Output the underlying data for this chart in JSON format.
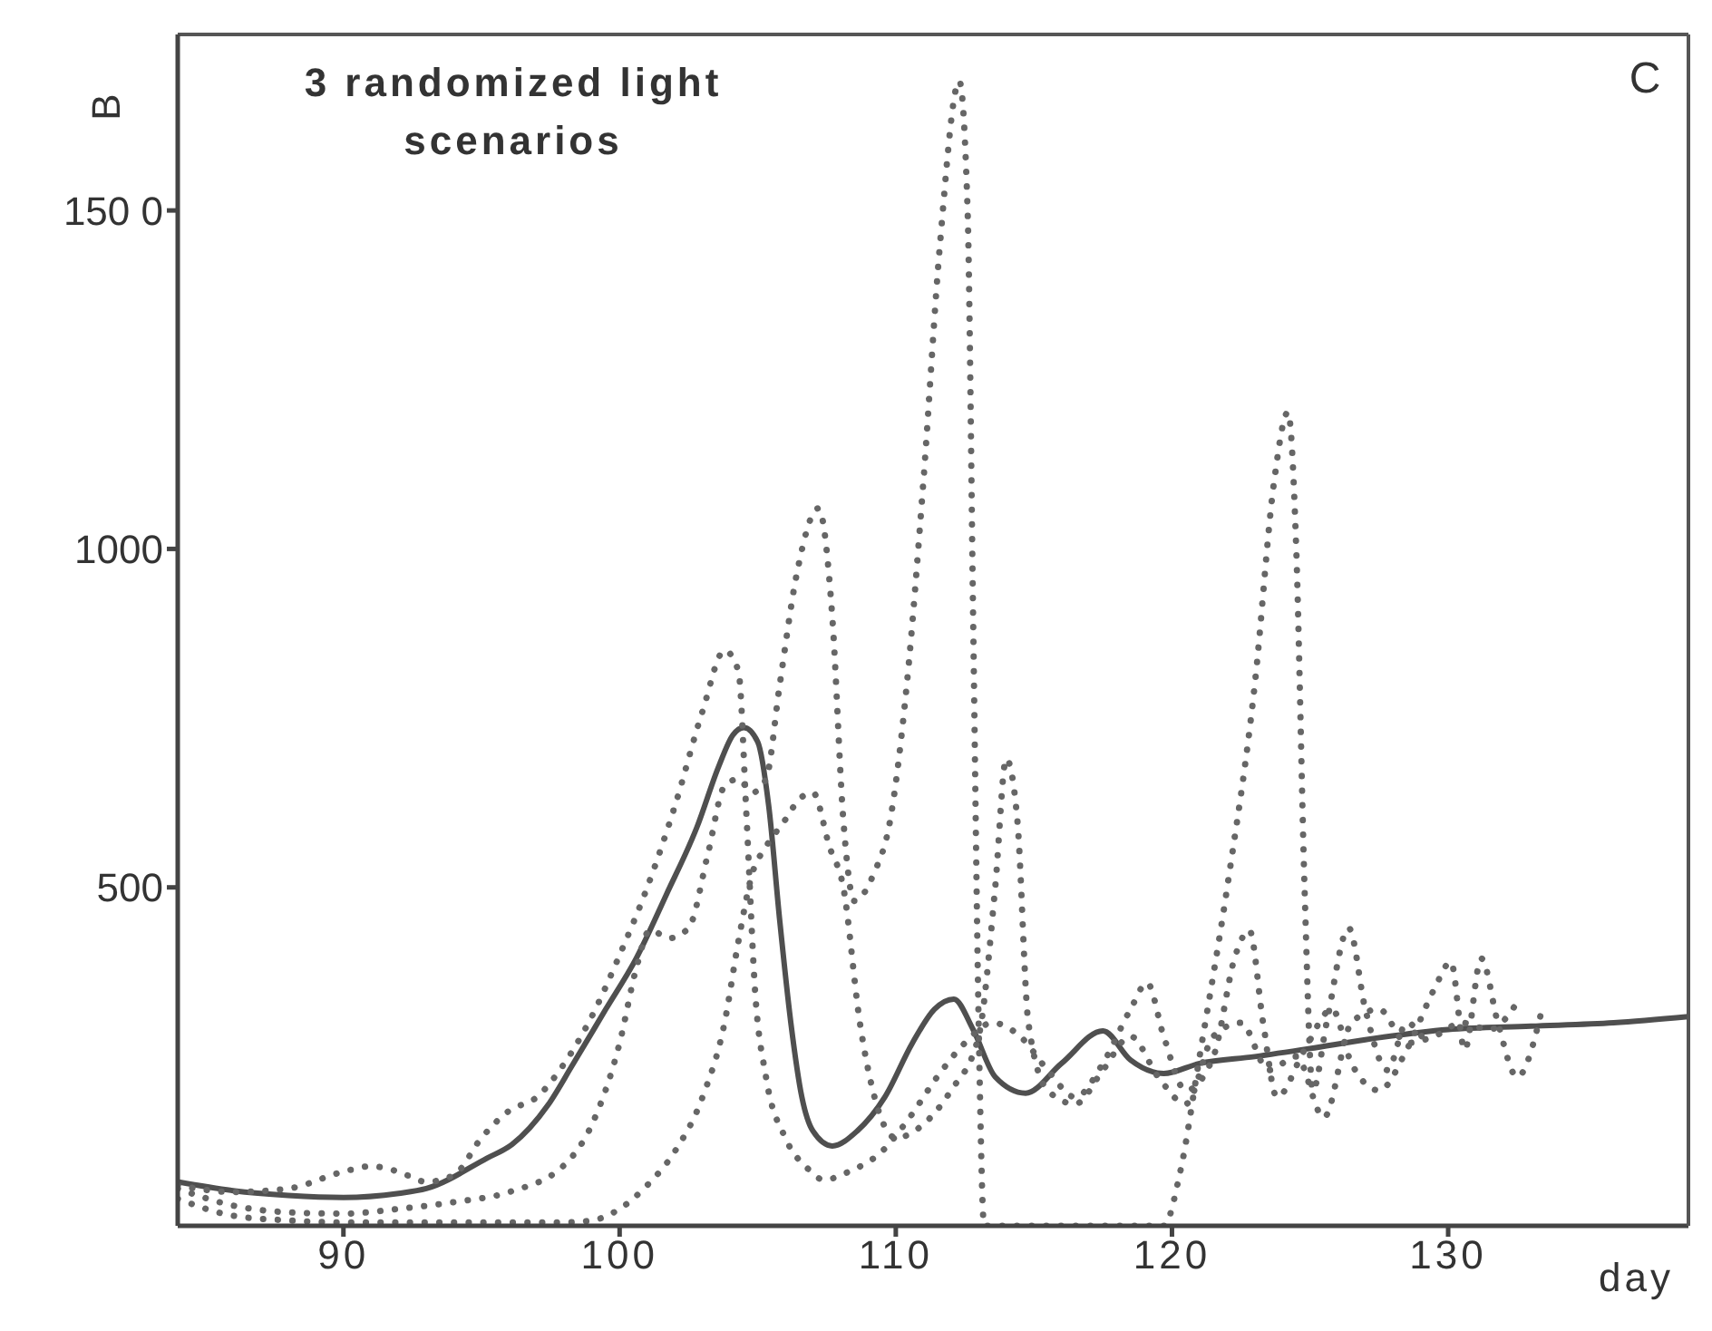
{
  "chart_data": {
    "type": "line",
    "title": "3 randomized light scenarios",
    "xlabel": "day",
    "ylabel": "B",
    "annotations": [
      "C"
    ],
    "xlim": [
      84,
      138.7
    ],
    "xticks": [
      90,
      100,
      110,
      120,
      130
    ],
    "ylim": [
      0,
      1760
    ],
    "yticks": [
      {
        "value": 500,
        "label": "500"
      },
      {
        "value": 1000,
        "label": "1000"
      },
      {
        "value": 1500,
        "label": "150 0"
      }
    ],
    "marker": "none",
    "series": [
      {
        "color": "#4f4f4f",
        "line_style": "solid",
        "x": [
          84,
          86,
          88,
          90,
          92,
          93,
          95.2,
          96.1,
          97.4,
          98.3,
          99.5,
          100.6,
          101.7,
          102.8,
          103.6,
          104.1,
          104.5,
          105,
          105.4,
          105.8,
          106.2,
          106.6,
          107,
          107.7,
          108.6,
          109.6,
          110.6,
          111.4,
          112.1,
          112.8,
          113.6,
          114.7,
          116,
          117.5,
          118.5,
          119.7,
          121,
          123,
          125,
          127,
          130,
          133,
          136,
          138.7
        ],
        "values": [
          65,
          52,
          45,
          42,
          48,
          55,
          100,
          120,
          178,
          238,
          320,
          395,
          490,
          589,
          680,
          725,
          736,
          715,
          620,
          450,
          300,
          190,
          140,
          118,
          140,
          190,
          270,
          320,
          335,
          290,
          220,
          196,
          240,
          288,
          245,
          225,
          240,
          250,
          262,
          275,
          290,
          295,
          300,
          309
        ]
      },
      {
        "color": "#666666",
        "line_style": "dotted",
        "x": [
          84,
          86,
          88,
          90,
          91,
          92,
          93,
          94,
          95,
          96,
          97,
          98,
          99,
          100,
          101,
          102,
          103,
          103.8,
          104.3,
          104.6,
          104.9,
          105.3,
          106,
          106.8,
          107.4,
          108.3,
          109.5,
          110.5,
          111.5,
          112.5,
          113.5,
          114.5,
          115.5,
          116.5,
          117.5,
          118.5,
          119.1,
          119.7,
          120.5,
          121.5,
          122.3,
          122.8,
          123.3,
          123.8,
          124.8,
          125.8,
          126.5,
          127.5,
          128.5,
          129.5,
          130.1,
          130.6,
          131.2,
          131.8,
          132.5,
          133.4
        ],
        "values": [
          60,
          50,
          55,
          80,
          88,
          80,
          65,
          75,
          130,
          170,
          190,
          240,
          310,
          400,
          500,
          620,
          760,
          850,
          820,
          600,
          350,
          220,
          130,
          85,
          68,
          80,
          110,
          160,
          220,
          270,
          300,
          280,
          230,
          190,
          240,
          320,
          359,
          280,
          200,
          250,
          400,
          437,
          300,
          190,
          260,
          320,
          240,
          200,
          260,
          350,
          390,
          260,
          395,
          300,
          220,
          320
        ]
      },
      {
        "color": "#666666",
        "line_style": "dotted",
        "x": [
          84,
          86,
          88,
          90,
          92,
          94,
          96,
          98,
          99,
          100,
          100.6,
          101.1,
          101.8,
          102.5,
          103.2,
          103.8,
          104.3,
          104.8,
          105.3,
          105.8,
          106.4,
          107.2,
          107.7,
          108.1,
          108.5,
          109.2,
          109.8,
          110.4,
          111,
          111.6,
          112.3,
          112.6,
          112.8,
          113,
          113.2,
          119.7,
          120.3,
          121,
          122,
          123,
          123.7,
          124.2,
          124.5,
          124.8,
          125.1,
          125.6,
          126.4,
          127,
          127.8,
          128.5,
          129.2
        ],
        "values": [
          55,
          30,
          20,
          18,
          25,
          35,
          50,
          90,
          150,
          270,
          380,
          437,
          425,
          440,
          550,
          650,
          660,
          640,
          660,
          800,
          960,
          1060,
          900,
          600,
          480,
          520,
          600,
          800,
          1100,
          1450,
          1691,
          1500,
          900,
          300,
          0,
          0,
          80,
          250,
          500,
          800,
          1100,
          1202,
          1000,
          500,
          200,
          300,
          440,
          320,
          230,
          300,
          270
        ]
      },
      {
        "color": "#666666",
        "line_style": "dotted",
        "x": [
          84,
          86,
          88,
          90,
          92,
          94,
          96,
          98,
          99,
          100,
          101,
          102,
          103,
          103.8,
          104.3,
          104.8,
          105.3,
          106,
          106.5,
          107,
          107.6,
          108.1,
          108.7,
          109.3,
          110,
          111,
          112,
          113,
          113.6,
          114,
          114.4,
          114.8,
          115.5,
          116.5,
          117.5,
          118.5,
          119.5,
          120.5,
          121.5,
          122.5,
          123.5,
          124.5,
          125.5,
          126.5,
          127.5,
          128.5,
          129.5,
          130.5,
          131.5,
          132.5
        ],
        "values": [
          40,
          15,
          8,
          5,
          5,
          5,
          5,
          5,
          8,
          25,
          60,
          110,
          190,
          300,
          420,
          520,
          560,
          600,
          630,
          640,
          560,
          500,
          300,
          180,
          130,
          150,
          200,
          280,
          500,
          690,
          600,
          300,
          200,
          180,
          230,
          280,
          220,
          180,
          280,
          300,
          230,
          250,
          160,
          300,
          320,
          270,
          280,
          300,
          290,
          330
        ]
      }
    ]
  }
}
